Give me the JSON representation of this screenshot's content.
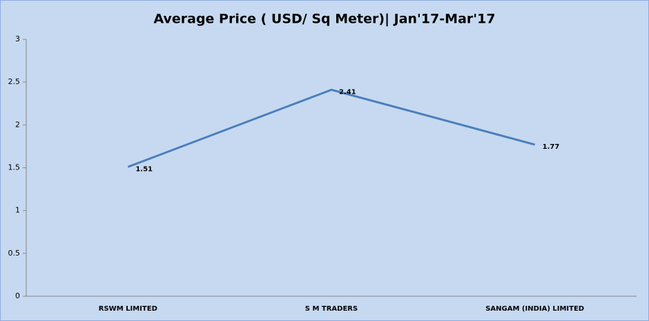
{
  "chart_data": {
    "type": "line",
    "title": "Average Price ( USD/ Sq Meter)| Jan'17-Mar'17",
    "categories": [
      "RSWM LIMITED",
      "S M TRADERS",
      "SANGAM (INDIA) LIMITED"
    ],
    "values": [
      1.51,
      2.41,
      1.77
    ],
    "color": "#4a7ebb",
    "ylim": [
      0,
      3
    ],
    "yticks": [
      0,
      0.5,
      1,
      1.5,
      2,
      2.5,
      3
    ],
    "grid": false
  }
}
